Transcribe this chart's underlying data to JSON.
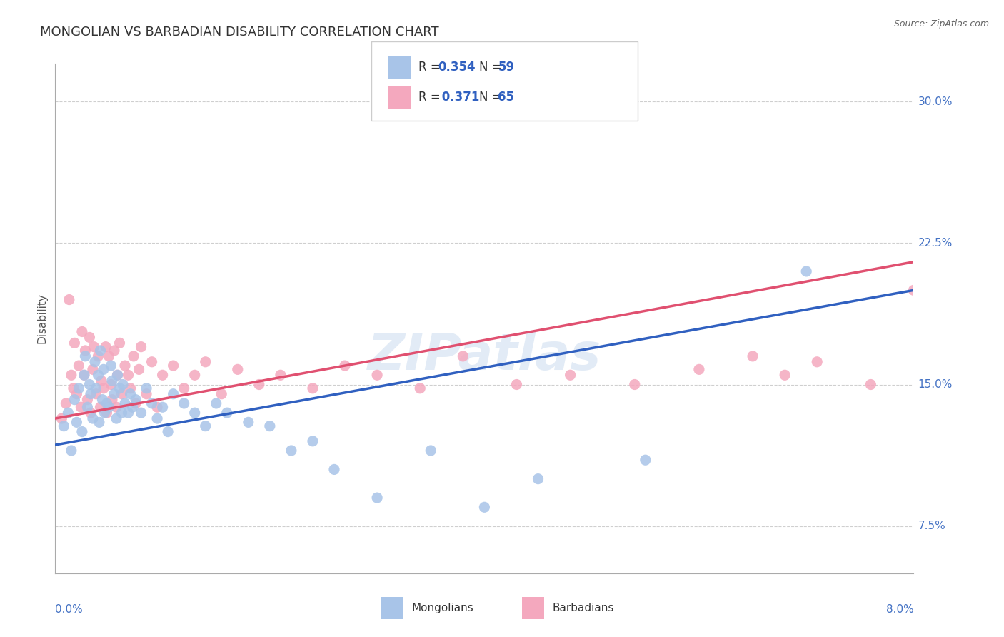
{
  "title": "MONGOLIAN VS BARBADIAN DISABILITY CORRELATION CHART",
  "source_text": "Source: ZipAtlas.com",
  "ylabel": "Disability",
  "xlim": [
    0.0,
    8.0
  ],
  "ylim": [
    5.0,
    32.0
  ],
  "yticks": [
    7.5,
    15.0,
    22.5,
    30.0
  ],
  "ytick_labels": [
    "7.5%",
    "15.0%",
    "22.5%",
    "30.0%"
  ],
  "xtick_left": "0.0%",
  "xtick_right": "8.0%",
  "mongolian_color": "#a8c4e8",
  "barbadian_color": "#f4a8be",
  "mongolian_line_color": "#3060c0",
  "barbadian_line_color": "#e05070",
  "legend_text_color": "#3060c0",
  "legend_label_color": "#333333",
  "R_mongo": "0.354",
  "N_mongo": "59",
  "R_barb": "0.371",
  "N_barb": "65",
  "grid_color": "#bbbbbb",
  "bg_color": "#ffffff",
  "title_color": "#333333",
  "axis_label_color": "#4472c4",
  "watermark_color": "#d0dff0",
  "mongo_x": [
    0.08,
    0.12,
    0.15,
    0.18,
    0.2,
    0.22,
    0.25,
    0.27,
    0.28,
    0.3,
    0.32,
    0.33,
    0.35,
    0.37,
    0.38,
    0.4,
    0.41,
    0.42,
    0.44,
    0.45,
    0.46,
    0.48,
    0.5,
    0.52,
    0.53,
    0.55,
    0.57,
    0.58,
    0.6,
    0.62,
    0.63,
    0.65,
    0.68,
    0.7,
    0.72,
    0.75,
    0.8,
    0.85,
    0.9,
    0.95,
    1.0,
    1.05,
    1.1,
    1.2,
    1.3,
    1.4,
    1.5,
    1.6,
    1.8,
    2.0,
    2.2,
    2.4,
    2.6,
    3.0,
    3.5,
    4.0,
    4.5,
    5.5,
    7.0
  ],
  "mongo_y": [
    12.8,
    13.5,
    11.5,
    14.2,
    13.0,
    14.8,
    12.5,
    15.5,
    16.5,
    13.8,
    15.0,
    14.5,
    13.2,
    16.2,
    14.8,
    15.5,
    13.0,
    16.8,
    14.2,
    15.8,
    13.5,
    14.0,
    13.8,
    16.0,
    15.2,
    14.5,
    13.2,
    15.5,
    14.8,
    13.5,
    15.0,
    14.0,
    13.5,
    14.5,
    13.8,
    14.2,
    13.5,
    14.8,
    14.0,
    13.2,
    13.8,
    12.5,
    14.5,
    14.0,
    13.5,
    12.8,
    14.0,
    13.5,
    13.0,
    12.8,
    11.5,
    12.0,
    10.5,
    9.0,
    11.5,
    8.5,
    10.0,
    11.0,
    21.0
  ],
  "barb_x": [
    0.06,
    0.1,
    0.13,
    0.15,
    0.17,
    0.18,
    0.2,
    0.22,
    0.24,
    0.25,
    0.27,
    0.28,
    0.3,
    0.32,
    0.33,
    0.35,
    0.36,
    0.38,
    0.4,
    0.42,
    0.43,
    0.45,
    0.47,
    0.48,
    0.5,
    0.52,
    0.53,
    0.55,
    0.57,
    0.58,
    0.6,
    0.62,
    0.65,
    0.68,
    0.7,
    0.73,
    0.75,
    0.78,
    0.8,
    0.85,
    0.9,
    0.95,
    1.0,
    1.1,
    1.2,
    1.3,
    1.4,
    1.55,
    1.7,
    1.9,
    2.1,
    2.4,
    2.7,
    3.0,
    3.4,
    3.8,
    4.3,
    4.8,
    5.4,
    6.0,
    6.5,
    6.8,
    7.1,
    7.6,
    8.0
  ],
  "barb_y": [
    13.2,
    14.0,
    19.5,
    15.5,
    14.8,
    17.2,
    14.5,
    16.0,
    13.8,
    17.8,
    15.5,
    16.8,
    14.2,
    17.5,
    13.5,
    15.8,
    17.0,
    14.5,
    16.5,
    13.8,
    15.2,
    14.8,
    17.0,
    13.5,
    16.5,
    15.0,
    14.2,
    16.8,
    13.8,
    15.5,
    17.2,
    14.5,
    16.0,
    15.5,
    14.8,
    16.5,
    14.0,
    15.8,
    17.0,
    14.5,
    16.2,
    13.8,
    15.5,
    16.0,
    14.8,
    15.5,
    16.2,
    14.5,
    15.8,
    15.0,
    15.5,
    14.8,
    16.0,
    15.5,
    14.8,
    16.5,
    15.0,
    15.5,
    15.0,
    15.8,
    16.5,
    15.5,
    16.2,
    15.0,
    20.0
  ],
  "mongo_line_x0": 0.0,
  "mongo_line_y0": 11.8,
  "mongo_line_x1": 8.0,
  "mongo_line_y1": 20.0,
  "barb_line_x0": 0.0,
  "barb_line_y0": 13.2,
  "barb_line_x1": 8.0,
  "barb_line_y1": 21.5
}
